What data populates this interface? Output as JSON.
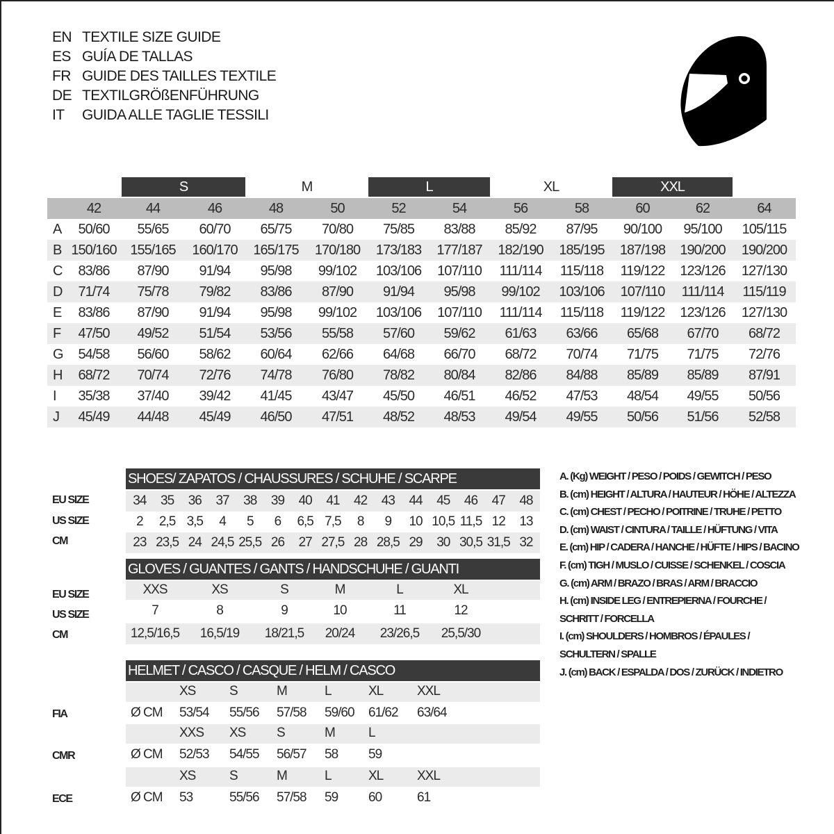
{
  "titles": [
    {
      "code": "EN",
      "text": "TEXTILE SIZE GUIDE"
    },
    {
      "code": "ES",
      "text": "GUÍA DE TALLAS"
    },
    {
      "code": "FR",
      "text": "GUIDE DES TAILLES TEXTILE"
    },
    {
      "code": "DE",
      "text": "TEXTILGRÖßENFÜHRUNG"
    },
    {
      "code": "IT",
      "text": "GUIDA ALLE TAGLIE TESSILI"
    }
  ],
  "icon": "helmet-icon",
  "colors": {
    "dark_header": "#3a3a3a",
    "number_row": "#bcbcbc",
    "alt_row": "#ebebeb"
  },
  "textile": {
    "groups": [
      "S",
      "M",
      "L",
      "XL",
      "XXL"
    ],
    "sizes": [
      "42",
      "44",
      "46",
      "48",
      "50",
      "52",
      "54",
      "56",
      "58",
      "60",
      "62",
      "64"
    ],
    "rows": [
      {
        "letter": "A",
        "values": [
          "50/60",
          "55/65",
          "60/70",
          "65/75",
          "70/80",
          "75/85",
          "83/88",
          "85/92",
          "87/95",
          "90/100",
          "95/100",
          "105/115"
        ]
      },
      {
        "letter": "B",
        "values": [
          "150/160",
          "155/165",
          "160/170",
          "165/175",
          "170/180",
          "173/183",
          "177/187",
          "182/190",
          "185/195",
          "187/198",
          "190/200",
          "190/200"
        ]
      },
      {
        "letter": "C",
        "values": [
          "83/86",
          "87/90",
          "91/94",
          "95/98",
          "99/102",
          "103/106",
          "107/110",
          "111/114",
          "115/118",
          "119/122",
          "123/126",
          "127/130"
        ]
      },
      {
        "letter": "D",
        "values": [
          "71/74",
          "75/78",
          "79/82",
          "83/86",
          "87/90",
          "91/94",
          "95/98",
          "99/102",
          "103/106",
          "107/110",
          "111/114",
          "115/119"
        ]
      },
      {
        "letter": "E",
        "values": [
          "83/86",
          "87/90",
          "91/94",
          "95/98",
          "99/102",
          "103/106",
          "107/110",
          "111/114",
          "115/118",
          "119/122",
          "123/126",
          "127/130"
        ]
      },
      {
        "letter": "F",
        "values": [
          "47/50",
          "49/52",
          "51/54",
          "53/56",
          "55/58",
          "57/60",
          "59/62",
          "61/63",
          "63/66",
          "65/68",
          "67/70",
          "68/72"
        ]
      },
      {
        "letter": "G",
        "values": [
          "54/58",
          "56/60",
          "58/62",
          "60/64",
          "62/66",
          "64/68",
          "66/70",
          "68/72",
          "70/74",
          "71/75",
          "71/75",
          "72/76"
        ]
      },
      {
        "letter": "H",
        "values": [
          "68/72",
          "70/74",
          "72/76",
          "74/78",
          "76/80",
          "78/82",
          "80/84",
          "82/86",
          "84/88",
          "85/89",
          "85/89",
          "87/91"
        ]
      },
      {
        "letter": "I",
        "values": [
          "35/38",
          "37/40",
          "39/42",
          "41/45",
          "43/47",
          "45/50",
          "46/51",
          "46/52",
          "47/53",
          "48/54",
          "49/55",
          "50/56"
        ]
      },
      {
        "letter": "J",
        "values": [
          "45/49",
          "44/48",
          "45/49",
          "46/50",
          "47/51",
          "48/52",
          "48/53",
          "49/54",
          "49/55",
          "50/56",
          "51/56",
          "52/58"
        ]
      }
    ]
  },
  "shoes": {
    "title": "SHOES/ ZAPATOS / CHAUSSURES / SCHUHE / SCARPE",
    "labels": [
      "EU SIZE",
      "US SIZE",
      "CM"
    ],
    "eu": [
      "34",
      "35",
      "36",
      "37",
      "38",
      "39",
      "40",
      "41",
      "42",
      "43",
      "44",
      "45",
      "46",
      "47",
      "48"
    ],
    "us": [
      "2",
      "2,5",
      "3,5",
      "4",
      "5",
      "6",
      "6,5",
      "7,5",
      "8",
      "9",
      "10",
      "10,5",
      "11,5",
      "12",
      "13"
    ],
    "cm": [
      "23",
      "23,5",
      "24",
      "24,5",
      "25,5",
      "26",
      "27",
      "27,5",
      "28",
      "28,5",
      "29",
      "30",
      "30,5",
      "31,5",
      "32"
    ]
  },
  "gloves": {
    "title": "GLOVES / GUANTES / GANTS / HANDSCHUHE / GUANTI",
    "labels": [
      "EU SIZE",
      "US SIZE",
      "CM"
    ],
    "eu": [
      "XXS",
      "XS",
      "S",
      "M",
      "L",
      "XL"
    ],
    "us": [
      "7",
      "8",
      "9",
      "10",
      "11",
      "12"
    ],
    "cm": [
      "12,5/16,5",
      "16,5/19",
      "18/21,5",
      "20/24",
      "23/26,5",
      "25,5/30"
    ]
  },
  "helmet": {
    "title": "HELMET / CASCO / CASQUE / HELM / CASCO",
    "unit": "Ø CM",
    "standards": [
      {
        "name": "FIA",
        "sizes": [
          "XS",
          "S",
          "M",
          "L",
          "XL",
          "XXL"
        ],
        "cm": [
          "53/54",
          "55/56",
          "57/58",
          "59/60",
          "61/62",
          "63/64"
        ]
      },
      {
        "name": "CMR",
        "sizes": [
          "XXS",
          "XS",
          "S",
          "M",
          "L"
        ],
        "cm": [
          "52/53",
          "54/55",
          "56/57",
          "58",
          "59"
        ]
      },
      {
        "name": "ECE",
        "sizes": [
          "XS",
          "S",
          "M",
          "L",
          "XL",
          "XXL"
        ],
        "cm": [
          "53",
          "55/56",
          "57/58",
          "59",
          "60",
          "61"
        ]
      }
    ]
  },
  "legend": [
    "A. (Kg) WEIGHT / PESO / POIDS / GEWITCH / PESO",
    "B. (cm) HEIGHT / ALTURA / HAUTEUR / HÖHE / ALTEZZA",
    "C. (cm) CHEST / PECHO / POITRINE / TRUHE / PETTO",
    "D. (cm) WAIST / CINTURA / TAILLE / HÜFTUNG / VITA",
    "E. (cm) HIP / CADERA / HANCHE / HÜFTE / HIPS /  BACINO",
    "F.  (cm) TIGH / MUSLO / CUISSE / SCHENKEL / COSCIA",
    "G. (cm) ARM  / BRAZO / BRAS / ARM / BRACCIO",
    "H. (cm) INSIDE LEG / ENTREPIERNA / FOURCHE /",
    "SCHRITT / FORCELLA",
    "I.  (cm) SHOULDERS / HOMBROS / ÉPAULES /",
    "SCHULTERN / SPALLE",
    "J. (cm) BACK / ESPALDA / DOS / ZURÜCK / INDIETRO"
  ]
}
